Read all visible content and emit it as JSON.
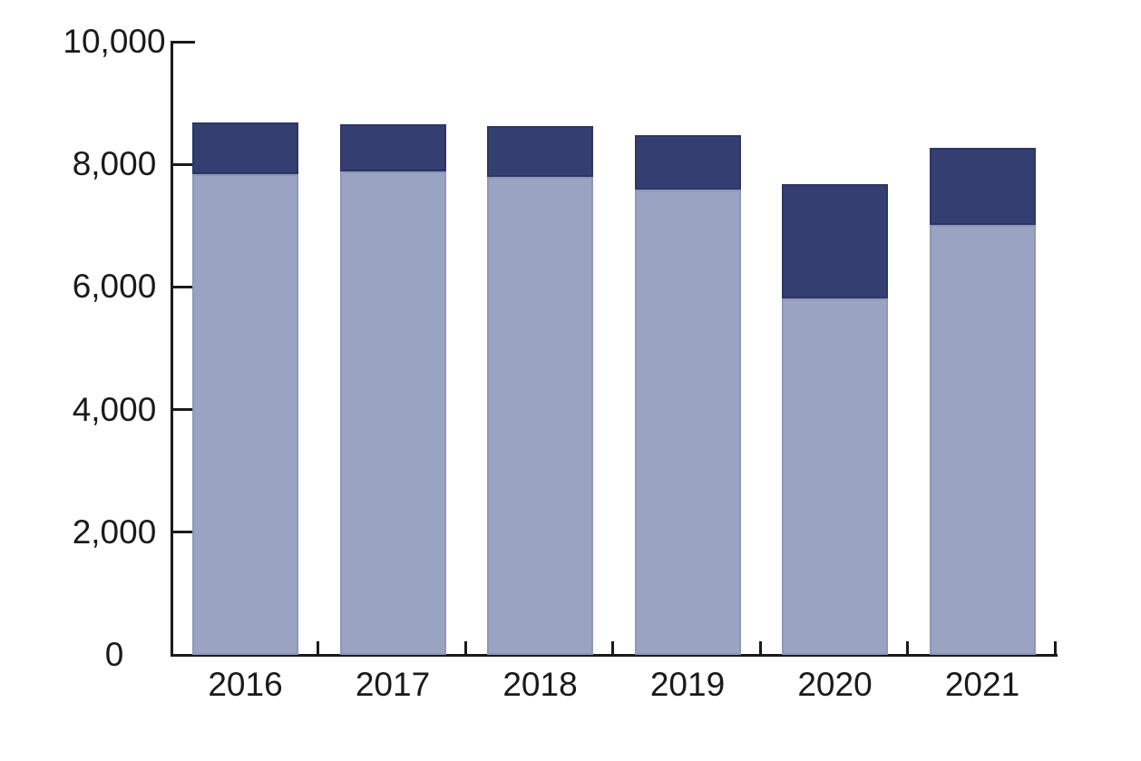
{
  "chart_data": {
    "type": "bar",
    "stacked": true,
    "title": "",
    "xlabel": "",
    "ylabel": "",
    "categories": [
      "2016",
      "2017",
      "2018",
      "2019",
      "2020",
      "2021"
    ],
    "series": [
      {
        "name": "lower-segment",
        "color": "#9aa4c2",
        "values": [
          7840,
          7890,
          7800,
          7590,
          5820,
          7010
        ]
      },
      {
        "name": "upper-segment",
        "color": "#343e70",
        "values": [
          840,
          770,
          830,
          890,
          1860,
          1260
        ]
      }
    ],
    "totals": [
      8680,
      8660,
      8630,
      8480,
      7680,
      8270
    ],
    "ylim": [
      0,
      10000
    ],
    "ytick_interval": 2000,
    "ytick_labels": [
      "0",
      "2,000",
      "4,000",
      "6,000",
      "8,000",
      "10,000"
    ],
    "grid": false,
    "legend_position": "none"
  },
  "colors": {
    "background": "#ffffff",
    "axis": "#1a1a1a",
    "text": "#1a1a1a",
    "lower_segment": "#9aa4c2",
    "upper_segment": "#343e70"
  }
}
